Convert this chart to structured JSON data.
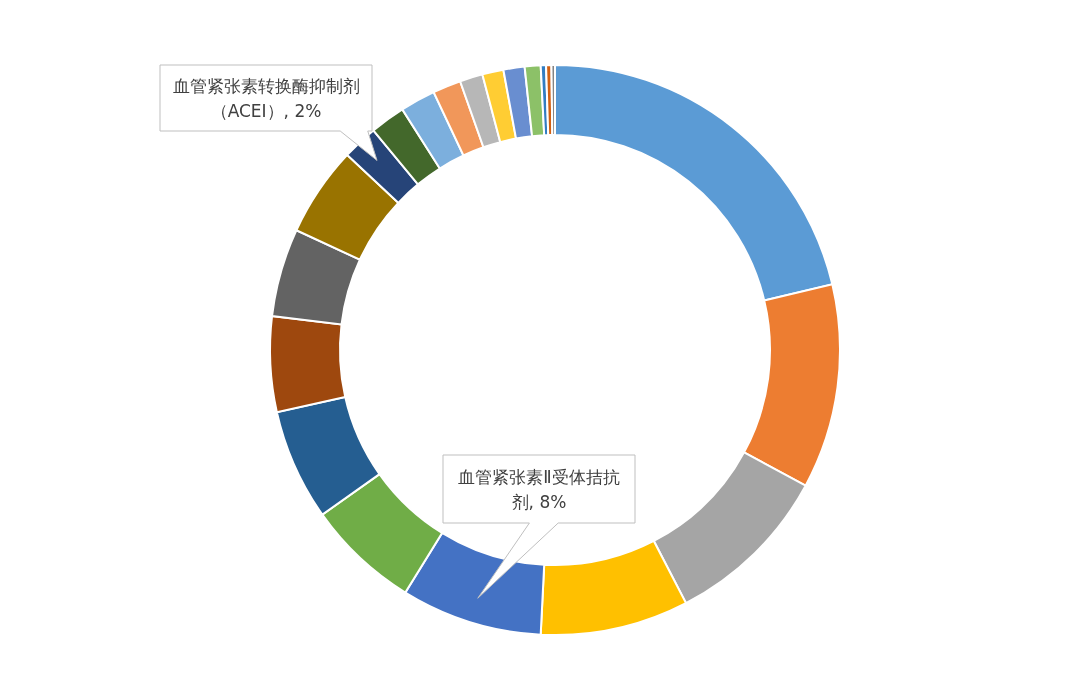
{
  "chart_data": {
    "type": "donut",
    "categories": [
      null,
      null,
      null,
      null,
      "血管紧张素Ⅱ受体拮抗剂",
      null,
      null,
      null,
      null,
      null,
      "血管紧张素转换酶抑制剂（ACEI）",
      null,
      null,
      null,
      null,
      null,
      null,
      null,
      null,
      null,
      null
    ],
    "values": [
      21.3,
      11.6,
      9.5,
      8.4,
      8,
      6.4,
      6.3,
      5.4,
      5,
      5.1,
      2,
      2,
      2,
      1.6,
      1.3,
      1.2,
      1.2,
      0.9,
      0.3,
      0.3,
      0.2
    ],
    "value_labels": [
      null,
      null,
      null,
      null,
      ", 8%",
      null,
      null,
      null,
      null,
      null,
      ", 2%",
      null,
      null,
      null,
      null,
      null,
      null,
      null,
      null,
      null,
      null
    ],
    "colors": [
      "#5b9bd5",
      "#ed7d31",
      "#a5a5a5",
      "#ffc000",
      "#4472c4",
      "#70ad47",
      "#255e91",
      "#9e480e",
      "#636363",
      "#997300",
      "#264478",
      "#43682b",
      "#7cafdd",
      "#f1975a",
      "#b7b7b7",
      "#ffcd33",
      "#698ed0",
      "#8cc168",
      "#327dc2",
      "#d26012",
      "#848484"
    ]
  }
}
